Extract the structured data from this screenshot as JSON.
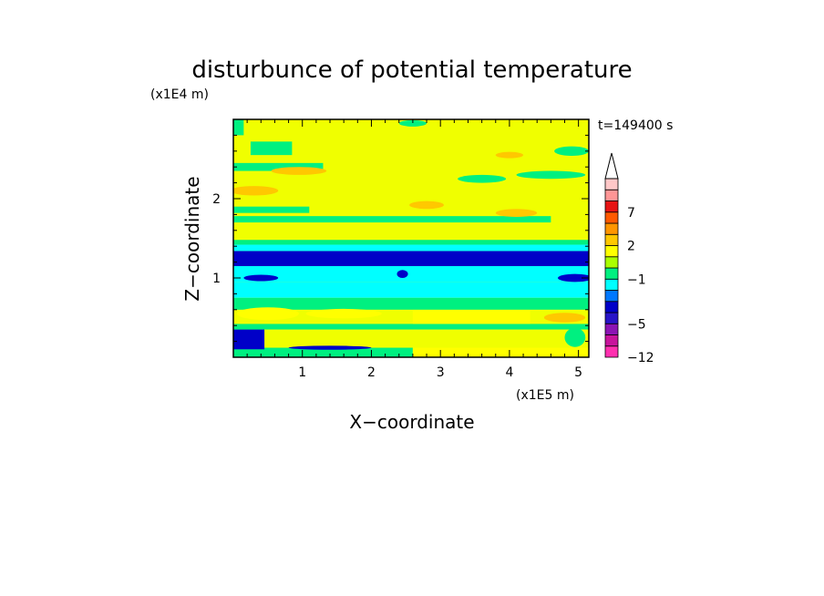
{
  "chart_data": {
    "type": "heatmap",
    "title": "disturbunce of potential temperature",
    "time_label": "t=149400 s",
    "xlabel": "X−coordinate",
    "ylabel": "Z−coordinate",
    "x_unit": "(x1E5 m)",
    "y_unit": "(x1E4 m)",
    "x_range": [
      0,
      5.15
    ],
    "y_range": [
      0,
      3.0
    ],
    "x_ticks": [
      1,
      2,
      3,
      4,
      5
    ],
    "y_ticks": [
      1,
      2
    ],
    "colorbar": {
      "levels": [
        -12,
        -11,
        -8,
        -5,
        -4,
        -3,
        -2,
        -1,
        0,
        1,
        2,
        3,
        5,
        7,
        9,
        11
      ],
      "colors": [
        "#ff30b0",
        "#c8149c",
        "#8c14b4",
        "#2814c8",
        "#0000c8",
        "#0078ff",
        "#00ffff",
        "#00f080",
        "#aaff00",
        "#ffff00",
        "#ffc800",
        "#ff9600",
        "#ff5a00",
        "#e61414",
        "#ff9696",
        "#ffc8c8"
      ],
      "tick_labels": [
        "-12",
        "-5",
        "-1",
        "2",
        "7"
      ],
      "tick_values": [
        -12,
        -5,
        -1,
        2,
        7
      ],
      "overflow_arrow": true
    },
    "background_color": "#f0ff00",
    "bands": [
      {
        "y0": 0.0,
        "y1": 0.12,
        "x0": 0.0,
        "x1": 2.6,
        "color": "#00f080"
      },
      {
        "y0": 0.0,
        "y1": 0.12,
        "x0": 2.6,
        "x1": 5.15,
        "color": "#ffff00"
      },
      {
        "y0": 0.1,
        "y1": 0.35,
        "x0": 0.0,
        "x1": 0.45,
        "color": "#0000c8"
      },
      {
        "y0": 0.35,
        "y1": 0.42,
        "x0": 0.0,
        "x1": 5.15,
        "color": "#00f080"
      },
      {
        "y0": 0.42,
        "y1": 0.6,
        "x0": 2.6,
        "x1": 4.3,
        "color": "#ffff00"
      },
      {
        "y0": 0.6,
        "y1": 0.75,
        "x0": 0.0,
        "x1": 5.15,
        "color": "#00f080"
      },
      {
        "y0": 0.75,
        "y1": 0.95,
        "x0": 0.0,
        "x1": 5.15,
        "color": "#00ffff"
      },
      {
        "y0": 0.95,
        "y1": 1.15,
        "x0": 0.0,
        "x1": 5.15,
        "color": "#00ffff"
      },
      {
        "y0": 1.15,
        "y1": 1.34,
        "x0": 0.0,
        "x1": 5.15,
        "color": "#0000c8"
      },
      {
        "y0": 1.34,
        "y1": 1.42,
        "x0": 0.0,
        "x1": 5.15,
        "color": "#00ffff"
      },
      {
        "y0": 1.42,
        "y1": 1.48,
        "x0": 0.0,
        "x1": 5.15,
        "color": "#00f080"
      },
      {
        "y0": 1.7,
        "y1": 1.78,
        "x0": 0.0,
        "x1": 4.6,
        "color": "#00f080"
      },
      {
        "y0": 1.82,
        "y1": 1.9,
        "x0": 0.0,
        "x1": 1.1,
        "color": "#00f080"
      },
      {
        "y0": 2.35,
        "y1": 2.45,
        "x0": 0.0,
        "x1": 1.3,
        "color": "#00f080"
      },
      {
        "y0": 2.55,
        "y1": 2.72,
        "x0": 0.25,
        "x1": 0.85,
        "color": "#00f080"
      },
      {
        "y0": 2.8,
        "y1": 3.0,
        "x0": 0.0,
        "x1": 0.15,
        "color": "#00f080"
      }
    ],
    "blobs": [
      {
        "x": 0.3,
        "y": 2.1,
        "rx": 0.35,
        "ry": 0.06,
        "color": "#ffc800"
      },
      {
        "x": 0.95,
        "y": 2.35,
        "rx": 0.4,
        "ry": 0.05,
        "color": "#ffc800"
      },
      {
        "x": 2.8,
        "y": 1.92,
        "rx": 0.25,
        "ry": 0.05,
        "color": "#ffc800"
      },
      {
        "x": 3.6,
        "y": 2.25,
        "rx": 0.35,
        "ry": 0.05,
        "color": "#00f080"
      },
      {
        "x": 4.6,
        "y": 2.3,
        "rx": 0.5,
        "ry": 0.05,
        "color": "#00f080"
      },
      {
        "x": 4.1,
        "y": 1.82,
        "rx": 0.3,
        "ry": 0.05,
        "color": "#ffc800"
      },
      {
        "x": 4.9,
        "y": 2.6,
        "rx": 0.25,
        "ry": 0.06,
        "color": "#00f080"
      },
      {
        "x": 4.0,
        "y": 2.55,
        "rx": 0.2,
        "ry": 0.04,
        "color": "#ffc800"
      },
      {
        "x": 2.6,
        "y": 2.95,
        "rx": 0.2,
        "ry": 0.04,
        "color": "#00f080"
      },
      {
        "x": 0.5,
        "y": 0.55,
        "rx": 0.45,
        "ry": 0.08,
        "color": "#ffff00"
      },
      {
        "x": 1.6,
        "y": 0.55,
        "rx": 0.55,
        "ry": 0.06,
        "color": "#ffff00"
      },
      {
        "x": 4.8,
        "y": 0.5,
        "rx": 0.3,
        "ry": 0.06,
        "color": "#ffc800"
      },
      {
        "x": 4.95,
        "y": 1.0,
        "rx": 0.25,
        "ry": 0.05,
        "color": "#0000c8"
      },
      {
        "x": 0.4,
        "y": 1.0,
        "rx": 0.25,
        "ry": 0.04,
        "color": "#0000c8"
      },
      {
        "x": 2.45,
        "y": 1.05,
        "rx": 0.08,
        "ry": 0.05,
        "color": "#0000c8"
      },
      {
        "x": 4.95,
        "y": 0.25,
        "rx": 0.15,
        "ry": 0.12,
        "color": "#00f080"
      },
      {
        "x": 1.4,
        "y": 0.12,
        "rx": 0.6,
        "ry": 0.025,
        "color": "#0000c8"
      }
    ]
  }
}
